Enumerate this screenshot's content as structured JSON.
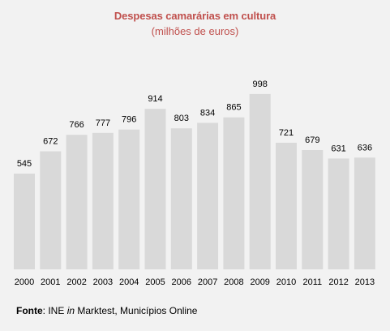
{
  "chart_data": {
    "type": "bar",
    "title": "Despesas camarárias em cultura",
    "subtitle": "(milhões de euros)",
    "categories": [
      "2000",
      "2001",
      "2002",
      "2003",
      "2004",
      "2005",
      "2006",
      "2007",
      "2008",
      "2009",
      "2010",
      "2011",
      "2012",
      "2013"
    ],
    "values": [
      545,
      672,
      766,
      777,
      796,
      914,
      803,
      834,
      865,
      998,
      721,
      679,
      631,
      636
    ],
    "xlabel": "",
    "ylabel": "",
    "ylim": [
      0,
      1000
    ],
    "grid": false,
    "legend": "none",
    "bar_color": "#d9d9d9"
  },
  "source": {
    "label": "Fonte",
    "text_pre": ": INE ",
    "text_italic": "in",
    "text_post": " Marktest, Municípios Online"
  },
  "colors": {
    "title": "#c0504d",
    "background": "#f2f2f2"
  }
}
